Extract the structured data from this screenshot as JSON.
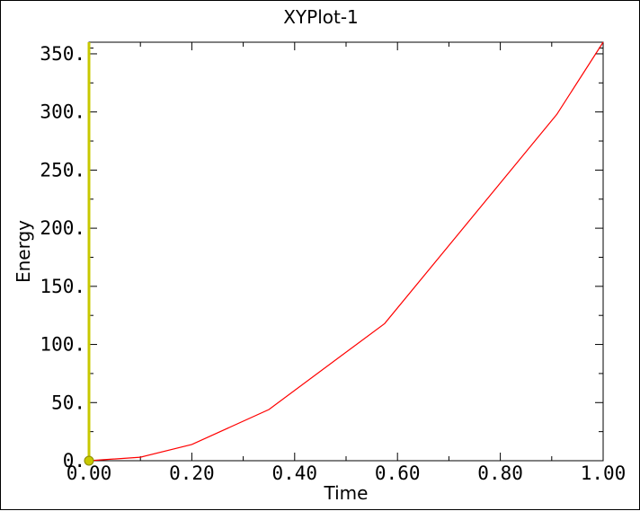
{
  "chart_data": {
    "type": "line",
    "title": "XYPlot-1",
    "xlabel": "Time",
    "ylabel": "Energy",
    "xlim": [
      0,
      1
    ],
    "ylim": [
      0,
      360
    ],
    "grid": false,
    "x_ticks": [
      0,
      0.2,
      0.4,
      0.6,
      0.8,
      1.0
    ],
    "x_tick_labels": [
      "0.00",
      "0.20",
      "0.40",
      "0.60",
      "0.80",
      "1.00"
    ],
    "y_ticks": [
      0,
      50,
      100,
      150,
      200,
      250,
      300,
      350
    ],
    "y_tick_labels": [
      "0.",
      "50.",
      "100.",
      "150.",
      "200.",
      "250.",
      "300.",
      "350."
    ],
    "series": [
      {
        "color": "#ff0000",
        "x": [
          0,
          0.1,
          0.2,
          0.35,
          0.575,
          0.91,
          1.0
        ],
        "y": [
          0,
          3,
          14,
          44,
          118,
          298,
          360
        ]
      }
    ],
    "marker": {
      "color": "#c8c800",
      "x": 0,
      "y": 0
    }
  }
}
